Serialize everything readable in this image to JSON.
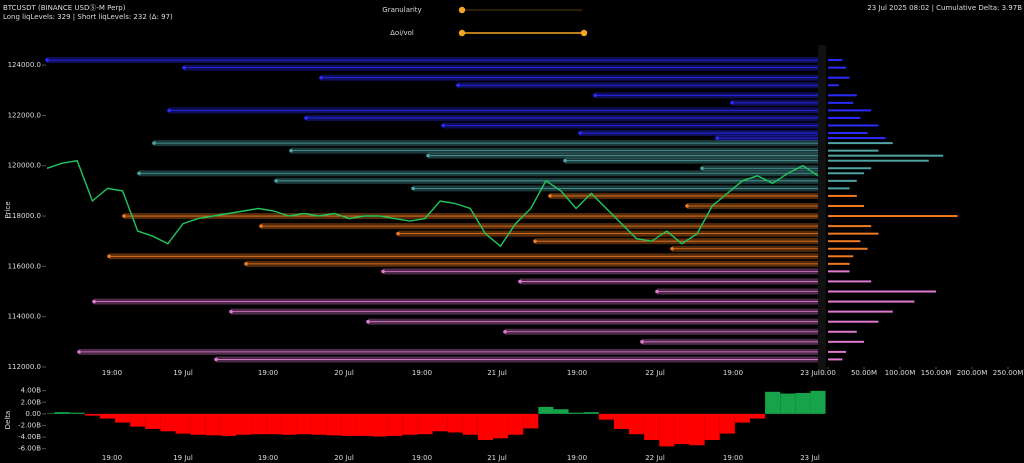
{
  "header": {
    "symbol": "BTCUSDT (BINANCE USDⓈ-M Perp)",
    "levels": "Long liqLevels: 329 | Short liqLevels: 232 (Δ: 97)",
    "status": "23 Jul 2025 08:02 | Cumulative Delta: 3.97B"
  },
  "controls": {
    "granularity": "Granularity",
    "oi_vol": "Δoi/vol"
  },
  "chart_data": [
    {
      "type": "price",
      "ylabel": "Price",
      "color": "#22c55e",
      "ylim": [
        111800,
        124800
      ],
      "yticks": [
        {
          "value": 124000,
          "label": "124000.0"
        },
        {
          "value": 122000,
          "label": "122000.0"
        },
        {
          "value": 120000,
          "label": "120000.0"
        },
        {
          "value": 118000,
          "label": "118000.0"
        },
        {
          "value": 116000,
          "label": "116000.0"
        },
        {
          "value": 114000,
          "label": "114000.0"
        },
        {
          "value": 112000,
          "label": "112000.0"
        }
      ],
      "xtick_labels": [
        "19:00",
        "19 Jul",
        "19:00",
        "20 Jul",
        "19:00",
        "21 Jul",
        "19:00",
        "22 Jul",
        "19:00",
        "23 Jul"
      ],
      "values": [
        119900,
        120100,
        120200,
        118600,
        119100,
        119000,
        117400,
        117200,
        116900,
        117700,
        117900,
        118000,
        118100,
        118200,
        118300,
        118200,
        118000,
        118100,
        118000,
        118100,
        117900,
        118000,
        118000,
        117900,
        117800,
        117900,
        118600,
        118500,
        118300,
        117300,
        116800,
        117700,
        118300,
        119400,
        119000,
        118300,
        118900,
        118300,
        117700,
        117100,
        117000,
        117400,
        116900,
        117300,
        118400,
        118900,
        119400,
        119600,
        119300,
        119700,
        120000,
        119600
      ],
      "liq_bands": [
        {
          "color": "#2b2bff",
          "prices": [
            124200,
            123900,
            123500,
            123200,
            122800,
            122500,
            122200,
            121900,
            121600,
            121300,
            121100
          ],
          "amounts": [
            20,
            25,
            30,
            15,
            40,
            35,
            60,
            45,
            70,
            55,
            80
          ]
        },
        {
          "color": "#4fa3a3",
          "prices": [
            120900,
            120600,
            120400,
            120200,
            119900,
            119700,
            119400,
            119100
          ],
          "amounts": [
            90,
            70,
            160,
            140,
            60,
            50,
            40,
            30
          ]
        },
        {
          "color": "#f07a20",
          "prices": [
            118800,
            118400,
            118000,
            117600,
            117300,
            117000,
            116700,
            116400,
            116100
          ],
          "amounts": [
            40,
            50,
            180,
            60,
            70,
            45,
            55,
            35,
            30
          ]
        },
        {
          "color": "#e07ad0",
          "prices": [
            115800,
            115400,
            115000,
            114600,
            114200,
            113800,
            113400,
            113000,
            112600,
            112300
          ],
          "amounts": [
            30,
            60,
            150,
            120,
            90,
            70,
            40,
            50,
            25,
            20
          ]
        }
      ],
      "xlim": [
        0,
        250
      ],
      "xticks": [
        {
          "value": 0,
          "label": "0.00"
        },
        {
          "value": 50,
          "label": "50.00M"
        },
        {
          "value": 100,
          "label": "100.00M"
        },
        {
          "value": 150,
          "label": "150.00M"
        },
        {
          "value": 200,
          "label": "200.00M"
        },
        {
          "value": 250,
          "label": "250.00M"
        }
      ]
    },
    {
      "type": "delta",
      "ylabel": "Delta",
      "pos_color": "#16a34a",
      "neg_color": "#ff0000",
      "ylim": [
        -7.6,
        4.8
      ],
      "yticks": [
        {
          "value": 4,
          "label": "4.00B"
        },
        {
          "value": 2,
          "label": "2.00B"
        },
        {
          "value": 0,
          "label": "0.00"
        },
        {
          "value": -2,
          "label": "-2.00B"
        },
        {
          "value": -4,
          "label": "-4.00B"
        },
        {
          "value": -6,
          "label": "-6.00B"
        }
      ],
      "xtick_labels": [
        "19:00",
        "19 Jul",
        "19:00",
        "20 Jul",
        "19:00",
        "21 Jul",
        "19:00",
        "22 Jul",
        "19:00",
        "23 Jul"
      ],
      "values": [
        0.1,
        0.3,
        0.2,
        -0.3,
        -0.8,
        -1.5,
        -2.2,
        -2.6,
        -3,
        -3.4,
        -3.6,
        -3.7,
        -3.8,
        -3.6,
        -3.5,
        -3.5,
        -3.6,
        -3.5,
        -3.6,
        -3.7,
        -3.8,
        -3.8,
        -3.9,
        -3.8,
        -3.6,
        -3.5,
        -3,
        -3.2,
        -3.6,
        -4.5,
        -4.2,
        -3.6,
        -2.5,
        1.2,
        0.8,
        0.2,
        0.3,
        -1,
        -2.6,
        -3.5,
        -4.5,
        -5.6,
        -5.2,
        -5.4,
        -4.5,
        -3.4,
        -1.5,
        -0.8,
        3.8,
        3.5,
        3.6,
        3.97
      ]
    }
  ]
}
